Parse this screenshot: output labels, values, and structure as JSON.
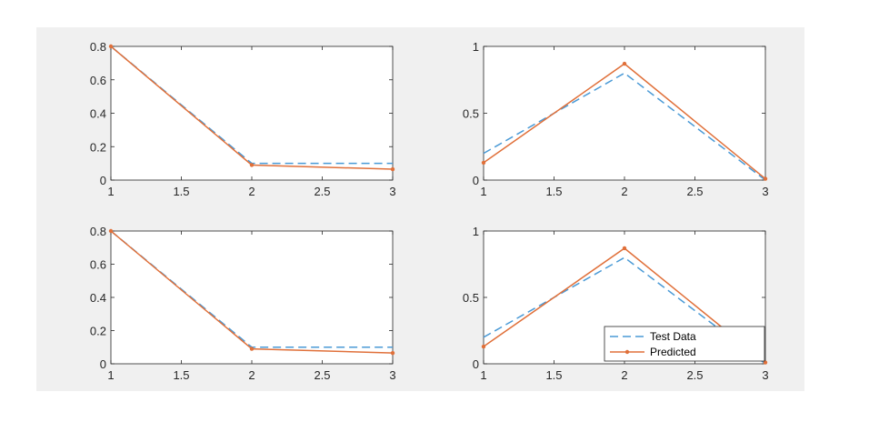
{
  "colors": {
    "figure_background": "#f0f0f0",
    "axes_background": "#ffffff",
    "axis_line": "#262626",
    "test_data": "#4a9ad6",
    "predicted": "#e0703a"
  },
  "chart_data": [
    {
      "type": "line",
      "title": "",
      "xlabel": "",
      "ylabel": "",
      "xlim": [
        1,
        3
      ],
      "ylim": [
        0,
        0.8
      ],
      "xticks": [
        "1",
        "1.5",
        "2",
        "2.5",
        "3"
      ],
      "yticks": [
        "0",
        "0.2",
        "0.4",
        "0.6",
        "0.8"
      ],
      "grid": false,
      "legend": false,
      "x": [
        1,
        2,
        3
      ],
      "series": [
        {
          "name": "Test Data",
          "style": "dashed",
          "values": [
            0.8,
            0.1,
            0.1
          ]
        },
        {
          "name": "Predicted",
          "style": "solid-dot",
          "values": [
            0.8,
            0.09,
            0.065
          ]
        }
      ]
    },
    {
      "type": "line",
      "title": "",
      "xlabel": "",
      "ylabel": "",
      "xlim": [
        1,
        3
      ],
      "ylim": [
        0,
        1
      ],
      "xticks": [
        "1",
        "1.5",
        "2",
        "2.5",
        "3"
      ],
      "yticks": [
        "0",
        "0.5",
        "1"
      ],
      "grid": false,
      "legend": false,
      "x": [
        1,
        2,
        3
      ],
      "series": [
        {
          "name": "Test Data",
          "style": "dashed",
          "values": [
            0.2,
            0.8,
            0.0
          ]
        },
        {
          "name": "Predicted",
          "style": "solid-dot",
          "values": [
            0.13,
            0.87,
            0.01
          ]
        }
      ]
    },
    {
      "type": "line",
      "title": "",
      "xlabel": "",
      "ylabel": "",
      "xlim": [
        1,
        3
      ],
      "ylim": [
        0,
        0.8
      ],
      "xticks": [
        "1",
        "1.5",
        "2",
        "2.5",
        "3"
      ],
      "yticks": [
        "0",
        "0.2",
        "0.4",
        "0.6",
        "0.8"
      ],
      "grid": false,
      "legend": false,
      "x": [
        1,
        2,
        3
      ],
      "series": [
        {
          "name": "Test Data",
          "style": "dashed",
          "values": [
            0.8,
            0.1,
            0.1
          ]
        },
        {
          "name": "Predicted",
          "style": "solid-dot",
          "values": [
            0.8,
            0.09,
            0.065
          ]
        }
      ]
    },
    {
      "type": "line",
      "title": "",
      "xlabel": "",
      "ylabel": "",
      "xlim": [
        1,
        3
      ],
      "ylim": [
        0,
        1
      ],
      "xticks": [
        "1",
        "1.5",
        "2",
        "2.5",
        "3"
      ],
      "yticks": [
        "0",
        "0.5",
        "1"
      ],
      "grid": false,
      "legend": true,
      "legend_position": "bottom-right",
      "legend_entries": [
        "Test Data",
        "Predicted"
      ],
      "x": [
        1,
        2,
        3
      ],
      "series": [
        {
          "name": "Test Data",
          "style": "dashed",
          "values": [
            0.2,
            0.8,
            0.0
          ]
        },
        {
          "name": "Predicted",
          "style": "solid-dot",
          "values": [
            0.13,
            0.87,
            0.01
          ]
        }
      ]
    }
  ]
}
